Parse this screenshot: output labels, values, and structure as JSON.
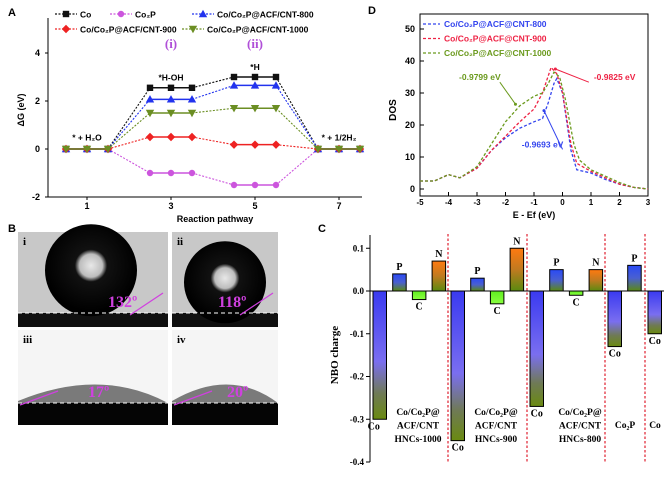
{
  "panel_labels": {
    "a": "A",
    "b": "B",
    "c": "C",
    "d": "D"
  },
  "chart_data": [
    {
      "id": "A",
      "type": "line",
      "xlabel": "Reaction pathway",
      "ylabel": "ΔG (eV)",
      "xlim": [
        0,
        8
      ],
      "ylim": [
        -2,
        5.3
      ],
      "xticks": [
        1,
        3,
        5,
        7
      ],
      "yticks": [
        -2,
        0,
        2,
        4
      ],
      "state_x": [
        1,
        3,
        5,
        7
      ],
      "series": [
        {
          "name": "Co",
          "color": "#111111",
          "marker": "square",
          "values": [
            0,
            2.55,
            3.0,
            0
          ]
        },
        {
          "name": "Co₂P",
          "color": "#cc55dd",
          "marker": "circle",
          "values": [
            0,
            -1.0,
            -1.5,
            0
          ]
        },
        {
          "name": "Co/Co₂P@ACF/CNT-800",
          "color": "#2233ee",
          "marker": "triangle-up",
          "values": [
            0,
            2.07,
            2.65,
            0
          ]
        },
        {
          "name": "Co/Co₂P@ACF/CNT-900",
          "color": "#ee2222",
          "marker": "diamond",
          "values": [
            0,
            0.5,
            0.18,
            0
          ]
        },
        {
          "name": "Co/Co₂P@ACF/CNT-1000",
          "color": "#6b8e23",
          "marker": "triangle-down",
          "values": [
            0,
            1.5,
            1.7,
            0
          ]
        }
      ],
      "annotations": [
        {
          "text": "(i)",
          "x": 3,
          "y": 4.2,
          "color": "#b04fd8"
        },
        {
          "text": "(ii)",
          "x": 5,
          "y": 4.2,
          "color": "#b04fd8"
        },
        {
          "text": "*H-OH",
          "x": 3,
          "y": 2.85,
          "color": "#000000"
        },
        {
          "text": "*H",
          "x": 5,
          "y": 3.3,
          "color": "#000000"
        },
        {
          "text": "* + H₂O",
          "x": 1,
          "y": 0.35,
          "color": "#000000"
        },
        {
          "text": "* + 1/2H₂",
          "x": 7,
          "y": 0.35,
          "color": "#000000"
        }
      ]
    },
    {
      "id": "D",
      "type": "line",
      "xlabel": "E - Ef (eV)",
      "ylabel": "DOS",
      "xlim": [
        -5,
        3
      ],
      "ylim": [
        -2,
        55
      ],
      "xticks": [
        -5,
        -4,
        -3,
        -2,
        -1,
        0,
        1,
        2,
        3
      ],
      "yticks": [
        0,
        10,
        20,
        30,
        40,
        50
      ],
      "series": [
        {
          "name": "Co/Co₂P@ACF@CNT-800",
          "color": "#3344ee",
          "x": [
            -5,
            -4.5,
            -4,
            -3.6,
            -3,
            -2.5,
            -2,
            -1.5,
            -1,
            -0.7,
            -0.5,
            -0.3,
            -0.2,
            0,
            0.3,
            0.5,
            1,
            1.5,
            2,
            2.5,
            3
          ],
          "y": [
            2.5,
            2.5,
            4.5,
            3.5,
            6.5,
            12,
            16,
            19,
            21,
            22,
            27,
            33,
            34.5,
            30,
            12,
            6,
            5,
            3,
            1.5,
            0.5,
            0
          ]
        },
        {
          "name": "Co/Co₂P@ACF@CNT-900",
          "color": "#ee2244",
          "x": [
            -5,
            -4.5,
            -4,
            -3.6,
            -3,
            -2.5,
            -2,
            -1.5,
            -1,
            -0.7,
            -0.4,
            -0.2,
            0,
            0.3,
            0.5,
            1,
            1.5,
            2,
            2.5,
            3
          ],
          "y": [
            2.5,
            2.5,
            4.5,
            3.5,
            6.5,
            12,
            16.5,
            21,
            25,
            30,
            38,
            36,
            30,
            14,
            8,
            5.5,
            3.5,
            1.5,
            0.5,
            0
          ]
        },
        {
          "name": "Co/Co₂P@ACF@CNT-1000",
          "color": "#6b9a1e",
          "x": [
            -5,
            -4.5,
            -4,
            -3.6,
            -3,
            -2.5,
            -2,
            -1.5,
            -1,
            -0.7,
            -0.5,
            -0.3,
            -0.1,
            0.1,
            0.4,
            0.6,
            1,
            1.5,
            2,
            2.5,
            3
          ],
          "y": [
            2.5,
            2.5,
            4.5,
            3.5,
            7,
            14,
            21,
            26,
            29,
            30,
            33,
            36.5,
            35,
            28,
            14,
            9,
            6,
            4,
            2,
            0.5,
            0
          ]
        }
      ],
      "annotations": [
        {
          "text": "-0.9799 eV",
          "color": "#6b9a1e",
          "tx": -2.9,
          "ty": 34,
          "ax": -1.65,
          "ay": 26.5
        },
        {
          "text": "-0.9825 eV",
          "color": "#ee2244",
          "tx": 1.1,
          "ty": 34,
          "ax": -0.25,
          "ay": 37.5
        },
        {
          "text": "-0.9693 eV",
          "color": "#3344ee",
          "tx": -0.7,
          "ty": 13,
          "ax": -0.65,
          "ay": 24.5
        }
      ]
    },
    {
      "id": "C",
      "type": "bar",
      "ylabel": "NBO charge",
      "ylim": [
        -0.4,
        0.13
      ],
      "yticks": [
        -0.4,
        -0.3,
        -0.2,
        -0.1,
        0.0,
        0.1
      ],
      "ytick_labels": [
        "-0.4",
        "-0.3",
        "-0.2",
        "-0.1",
        "0.0",
        "0.1"
      ],
      "groups": [
        {
          "label": [
            "Co/Co₂P@",
            "ACF/CNT",
            "HNCs-1000"
          ],
          "bars": [
            {
              "atom": "Co",
              "value": -0.3
            },
            {
              "atom": "P",
              "value": 0.04
            },
            {
              "atom": "C",
              "value": -0.02
            },
            {
              "atom": "N",
              "value": 0.07
            }
          ]
        },
        {
          "label": [
            "Co/Co₂P@",
            "ACF/CNT",
            "HNCs-900"
          ],
          "bars": [
            {
              "atom": "Co",
              "value": -0.35
            },
            {
              "atom": "P",
              "value": 0.03
            },
            {
              "atom": "C",
              "value": -0.03
            },
            {
              "atom": "N",
              "value": 0.1
            }
          ]
        },
        {
          "label": [
            "Co/Co₂P@",
            "ACF/CNT",
            "HNCs-800"
          ],
          "bars": [
            {
              "atom": "Co",
              "value": -0.27
            },
            {
              "atom": "P",
              "value": 0.05
            },
            {
              "atom": "C",
              "value": -0.01
            },
            {
              "atom": "N",
              "value": 0.05
            }
          ]
        },
        {
          "label": [
            "Co₂P"
          ],
          "bars": [
            {
              "atom": "Co",
              "value": -0.13
            },
            {
              "atom": "P",
              "value": 0.06
            }
          ]
        },
        {
          "label": [
            "Co"
          ],
          "bars": [
            {
              "atom": "Co",
              "value": -0.1
            }
          ]
        }
      ]
    }
  ],
  "contact_angles": [
    {
      "label": "i",
      "angle": "132º"
    },
    {
      "label": "ii",
      "angle": "118º"
    },
    {
      "label": "iii",
      "angle": "17º"
    },
    {
      "label": "iv",
      "angle": "20º"
    }
  ]
}
